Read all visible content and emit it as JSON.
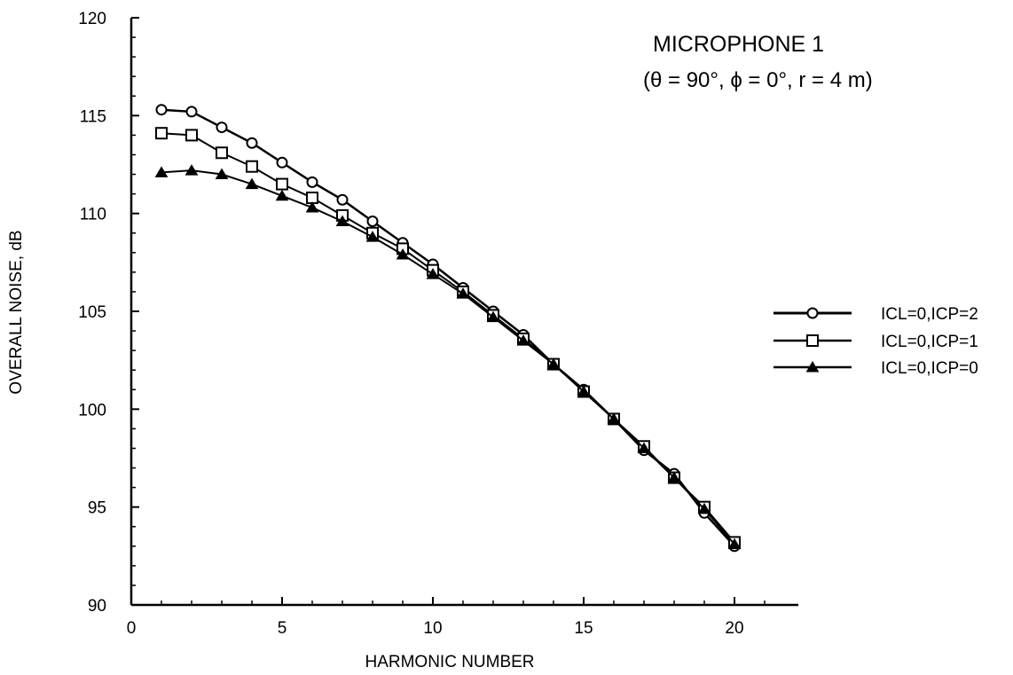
{
  "chart_data": {
    "type": "line",
    "title": "MICROPHONE 1",
    "subtitle": "(θ = 90°,  ϕ = 0°,  r = 4 m)",
    "xlabel": "HARMONIC NUMBER",
    "ylabel": "OVERALL NOISE, dB",
    "xlim": [
      0,
      22
    ],
    "ylim": [
      90,
      120
    ],
    "xticks": [
      0,
      5,
      10,
      15,
      20
    ],
    "yticks": [
      90,
      95,
      100,
      105,
      110,
      115,
      120
    ],
    "xtick_labels": [
      "0",
      "5",
      "10",
      "15",
      "20"
    ],
    "ytick_labels": [
      "90",
      "95",
      "100",
      "105",
      "110",
      "115",
      "120"
    ],
    "grid": false,
    "legend_position": "right",
    "x": [
      1,
      2,
      3,
      4,
      5,
      6,
      7,
      8,
      9,
      10,
      11,
      12,
      13,
      14,
      15,
      16,
      17,
      18,
      19,
      20
    ],
    "series": [
      {
        "name": "ICL=0,ICP=2",
        "marker": "circle",
        "values": [
          115.3,
          115.2,
          114.4,
          113.6,
          112.6,
          111.6,
          110.7,
          109.6,
          108.5,
          107.4,
          106.2,
          105.0,
          103.8,
          102.3,
          101.0,
          99.5,
          97.9,
          96.7,
          94.7,
          93.0
        ]
      },
      {
        "name": "ICL=0,ICP=1",
        "marker": "square",
        "values": [
          114.1,
          114.0,
          113.1,
          112.4,
          111.5,
          110.8,
          109.9,
          109.0,
          108.2,
          107.1,
          106.0,
          104.8,
          103.6,
          102.3,
          100.9,
          99.5,
          98.1,
          96.5,
          95.0,
          93.2
        ]
      },
      {
        "name": "ICL=0,ICP=0",
        "marker": "triangle",
        "values": [
          112.1,
          112.2,
          112.0,
          111.5,
          110.9,
          110.3,
          109.6,
          108.8,
          107.9,
          106.9,
          105.9,
          104.7,
          103.5,
          102.3,
          100.9,
          99.5,
          98.0,
          96.5,
          94.9,
          93.1
        ]
      }
    ]
  }
}
